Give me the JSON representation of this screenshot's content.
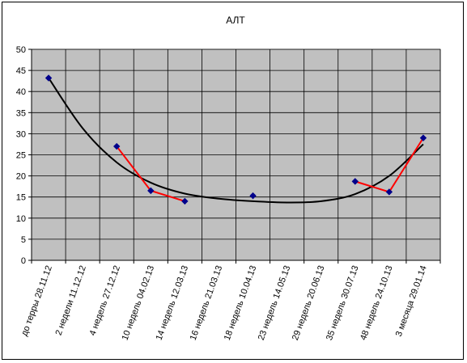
{
  "chart_data": {
    "type": "line",
    "title": "АЛТ",
    "ylim": [
      0,
      50
    ],
    "yticks": [
      0,
      5,
      10,
      15,
      20,
      25,
      30,
      35,
      40,
      45,
      50
    ],
    "grid": true,
    "legend": "none",
    "categories": [
      "до терры 28.11.12",
      "2 недели 11.12.12",
      "4 недель 27.12.12",
      "10 недель 04.02.13",
      "14 недель 12.03.13",
      "16 недель 21.03.13",
      "18 недель 10.04.13",
      "23 недель 14.05.13",
      "29 недель 20.06.13",
      "35 недель 30.07.13",
      "48 недель 24.10.13",
      "3 месяца 29.01.14"
    ],
    "series": [
      {
        "values": [
          43.2,
          null,
          27.0,
          16.5,
          14.0,
          null,
          15.3,
          null,
          null,
          18.7,
          16.2,
          29.0
        ],
        "color": "#ff0000",
        "marker_color": "#00008b",
        "marker": "diamond"
      }
    ],
    "trendline": {
      "kind": "polynomial",
      "color": "#000000",
      "values": [
        43.2,
        31.3,
        23.2,
        18.4,
        15.8,
        14.6,
        14.0,
        13.7,
        14.0,
        15.7,
        20.0,
        27.5
      ]
    },
    "colors": {
      "plot_background": "#c0c0c0",
      "grid": "#000000"
    }
  }
}
